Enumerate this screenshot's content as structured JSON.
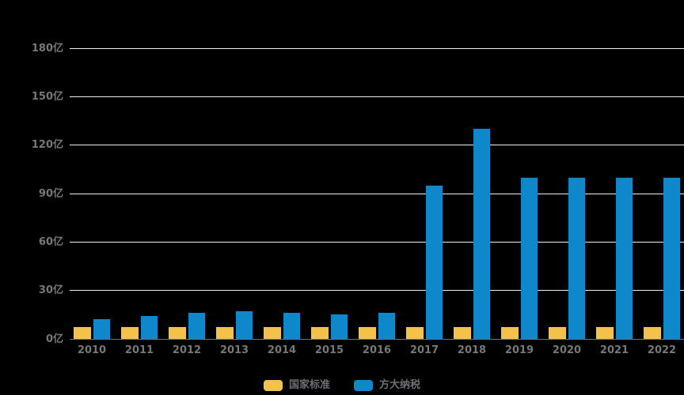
{
  "chart_data": {
    "type": "bar",
    "title": "",
    "xlabel": "",
    "ylabel": "",
    "categories": [
      "2010",
      "2011",
      "2012",
      "2013",
      "2014",
      "2015",
      "2016",
      "2017",
      "2018",
      "2019",
      "2020",
      "2021",
      "2022"
    ],
    "series": [
      {
        "name": "国家标准",
        "color": "#F3C24B",
        "values": [
          7.5,
          7.5,
          7.5,
          7.5,
          7.5,
          7.5,
          7.5,
          7.5,
          7.5,
          7.5,
          7.5,
          7.5,
          7.5
        ]
      },
      {
        "name": "方大纳税",
        "color": "#0F87CB",
        "values": [
          12,
          14,
          16,
          17,
          16,
          15,
          16,
          95,
          130,
          100,
          100,
          100,
          100
        ]
      }
    ],
    "y_ticks": [
      {
        "label": "0亿",
        "value": 0
      },
      {
        "label": "30亿",
        "value": 30
      },
      {
        "label": "60亿",
        "value": 60
      },
      {
        "label": "90亿",
        "value": 90
      },
      {
        "label": "120亿",
        "value": 120
      },
      {
        "label": "150亿",
        "value": 150
      },
      {
        "label": "180亿",
        "value": 180
      }
    ],
    "ylim": [
      0,
      180
    ],
    "grid": true,
    "legend_position": "bottom",
    "background_color": "#000000",
    "gridline_color": "#ECECF1",
    "axis_line_color": "#6E7073",
    "tick_label_color": "#76777B"
  }
}
